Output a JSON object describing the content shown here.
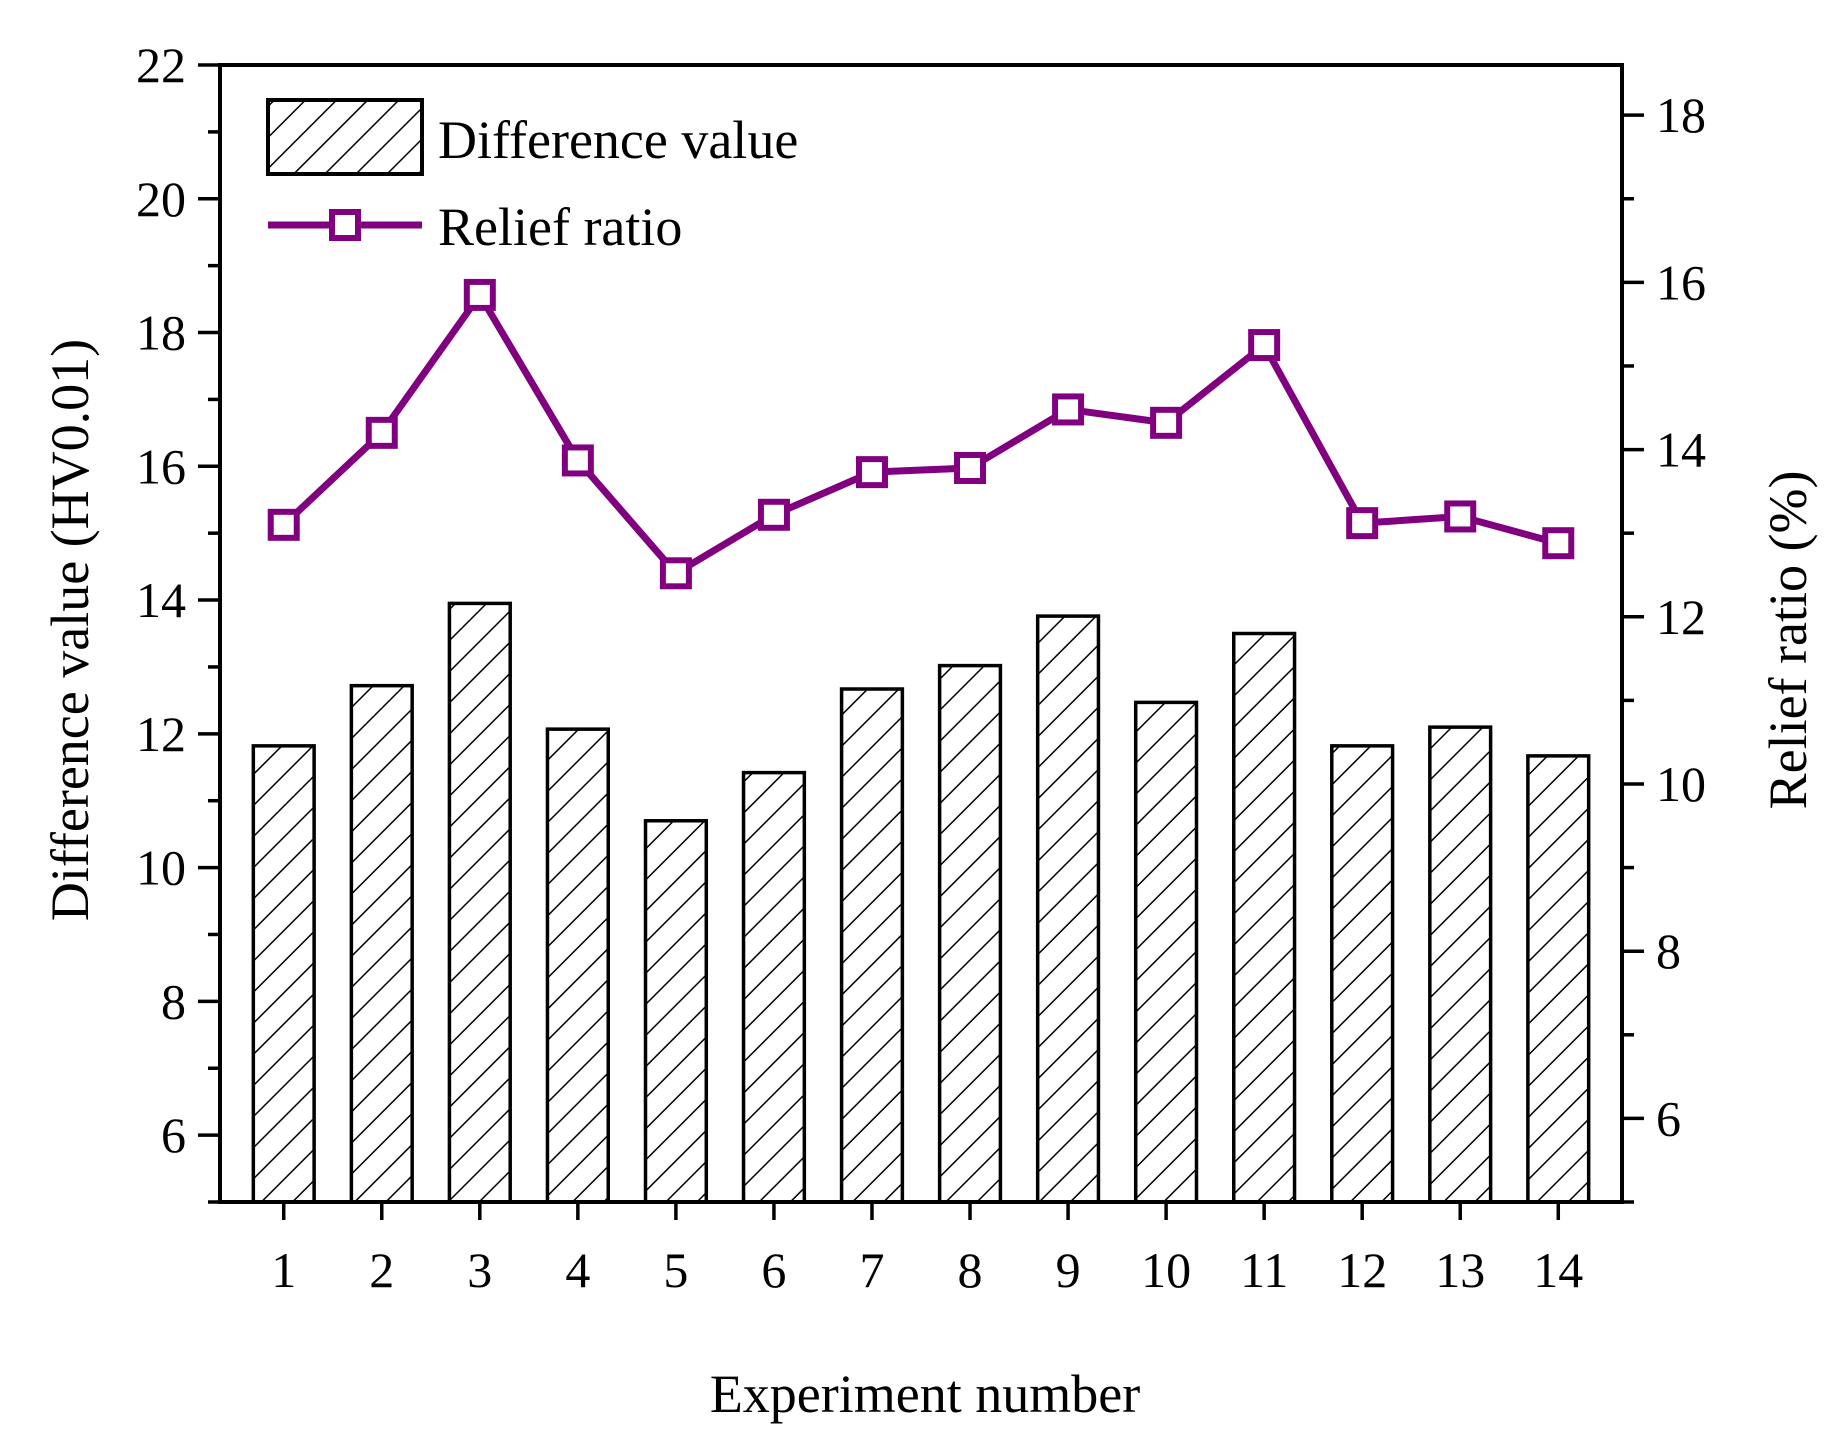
{
  "chart_data": {
    "type": "bar",
    "xlabel": "Experiment number",
    "ylabel": "Difference value (HV0.01)",
    "y2label": "Relief ratio (%)",
    "ylim": [
      5,
      22
    ],
    "y2lim": [
      5,
      18.6
    ],
    "yticks": [
      "6",
      "8",
      "10",
      "12",
      "14",
      "16",
      "18",
      "20",
      "22"
    ],
    "y2ticks": [
      "6",
      "8",
      "10",
      "12",
      "14",
      "16",
      "18"
    ],
    "categories": [
      "1",
      "2",
      "3",
      "4",
      "5",
      "6",
      "7",
      "8",
      "9",
      "10",
      "11",
      "12",
      "13",
      "14"
    ],
    "legend_position": "top-left",
    "series": [
      {
        "name": "Difference value",
        "type": "bar",
        "axis": "left",
        "pattern": "diagonal-hatch",
        "values": [
          11.82,
          12.72,
          13.95,
          12.07,
          10.7,
          11.42,
          12.67,
          13.02,
          13.76,
          12.47,
          13.5,
          11.82,
          12.1,
          11.67
        ]
      },
      {
        "name": "Relief ratio",
        "type": "line",
        "axis": "right",
        "marker": "open-square",
        "color": "#800080",
        "values": [
          13.1,
          14.2,
          15.85,
          13.87,
          12.52,
          13.22,
          13.73,
          13.78,
          14.48,
          14.32,
          15.25,
          13.12,
          13.2,
          12.88
        ]
      }
    ]
  }
}
